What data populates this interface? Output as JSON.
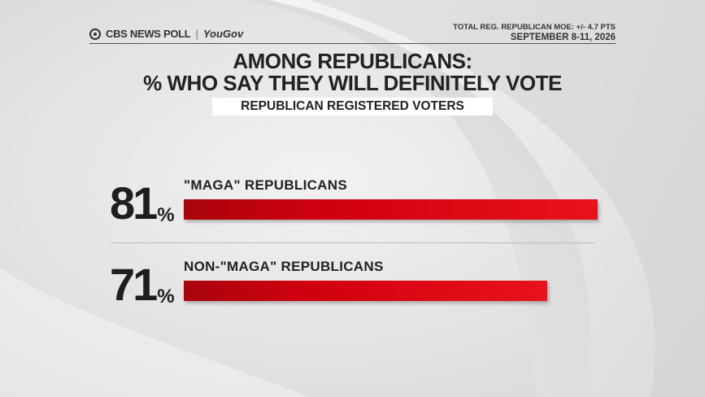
{
  "header": {
    "brand": "CBS NEWS POLL",
    "partner": "YouGov",
    "moe": "TOTAL REG. REPUBLICAN MOE: +/- 4.7 PTS",
    "date": "SEPTEMBER 8-11, 2026"
  },
  "chart_data": {
    "type": "bar",
    "title": "AMONG REPUBLICANS:\n% WHO SAY THEY WILL DEFINITELY VOTE",
    "title_line1": "AMONG REPUBLICANS:",
    "title_line2": "% WHO SAY THEY WILL DEFINITELY VOTE",
    "subtitle": "REPUBLICAN REGISTERED VOTERS",
    "categories": [
      "\"MAGA\" REPUBLICANS",
      "NON-\"MAGA\" REPUBLICANS"
    ],
    "values": [
      81,
      71
    ],
    "value_labels": [
      "81",
      "71"
    ],
    "unit": "%",
    "ylim": [
      0,
      100
    ],
    "colors": {
      "bar": "#d1000f",
      "bar_dark": "#a9040d"
    }
  }
}
